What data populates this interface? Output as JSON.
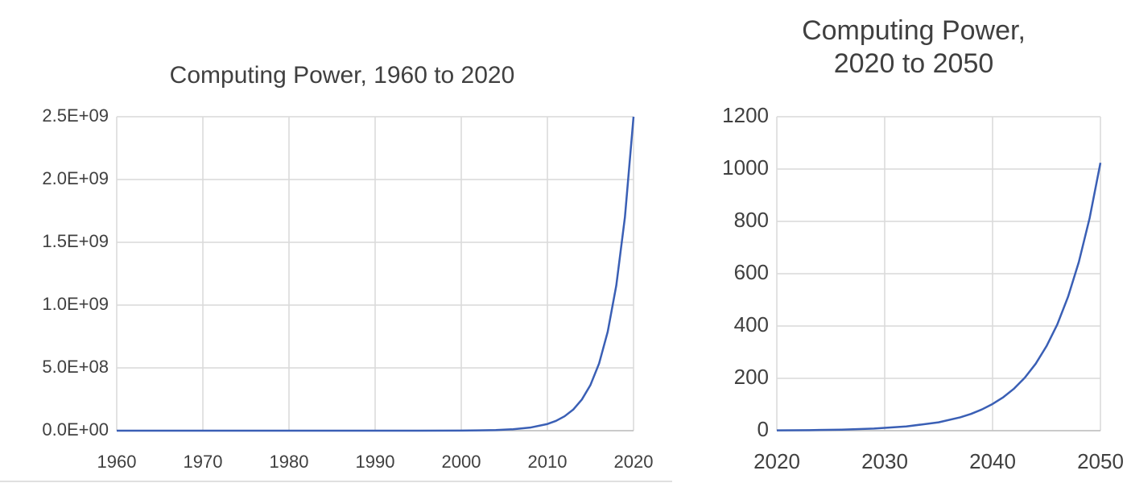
{
  "chart_data": [
    {
      "type": "line",
      "title": "Computing Power, 1960 to 2020",
      "x": [
        1960,
        1970,
        1980,
        1990,
        1995,
        2000,
        2002,
        2004,
        2006,
        2008,
        2010,
        2011,
        2012,
        2013,
        2014,
        2015,
        2016,
        2017,
        2018,
        2019,
        2020
      ],
      "series": [
        {
          "color": "#3a5fb5",
          "values": [
            0.2,
            11,
            530,
            25000,
            170000,
            1100000,
            2400000,
            5200000,
            11300000,
            24500000,
            53000000,
            78000000,
            115000000,
            168000000,
            248000000,
            364000000,
            535000000,
            787000000,
            1157000000,
            1700000000,
            2500000000
          ]
        }
      ],
      "xlim": [
        1960,
        2020
      ],
      "xticks": [
        1960,
        1970,
        1980,
        1990,
        2000,
        2010,
        2020
      ],
      "ylim": [
        0,
        2500000000
      ],
      "yticks": [
        {
          "value": 0,
          "label": "0.0E+00"
        },
        {
          "value": 500000000,
          "label": "5.0E+08"
        },
        {
          "value": 1000000000,
          "label": "1.0E+09"
        },
        {
          "value": 1500000000,
          "label": "1.5E+09"
        },
        {
          "value": 2000000000,
          "label": "2.0E+09"
        },
        {
          "value": 2500000000,
          "label": "2.5E+09"
        }
      ],
      "grid": true
    },
    {
      "type": "line",
      "title": "Computing Power, 2020 to 2050",
      "x": [
        2020,
        2023,
        2026,
        2029,
        2032,
        2035,
        2037,
        2038,
        2039,
        2040,
        2041,
        2042,
        2043,
        2044,
        2045,
        2046,
        2047,
        2048,
        2049,
        2050
      ],
      "series": [
        {
          "color": "#3a5fb5",
          "values": [
            1,
            2,
            4,
            8,
            16,
            32,
            51,
            64,
            81,
            102,
            128,
            161,
            203,
            256,
            323,
            406,
            512,
            645,
            813,
            1024
          ]
        }
      ],
      "xlim": [
        2020,
        2050
      ],
      "xticks": [
        2020,
        2030,
        2040,
        2050
      ],
      "ylim": [
        0,
        1200
      ],
      "yticks": [
        0,
        200,
        400,
        600,
        800,
        1000,
        1200
      ],
      "grid": true
    }
  ]
}
